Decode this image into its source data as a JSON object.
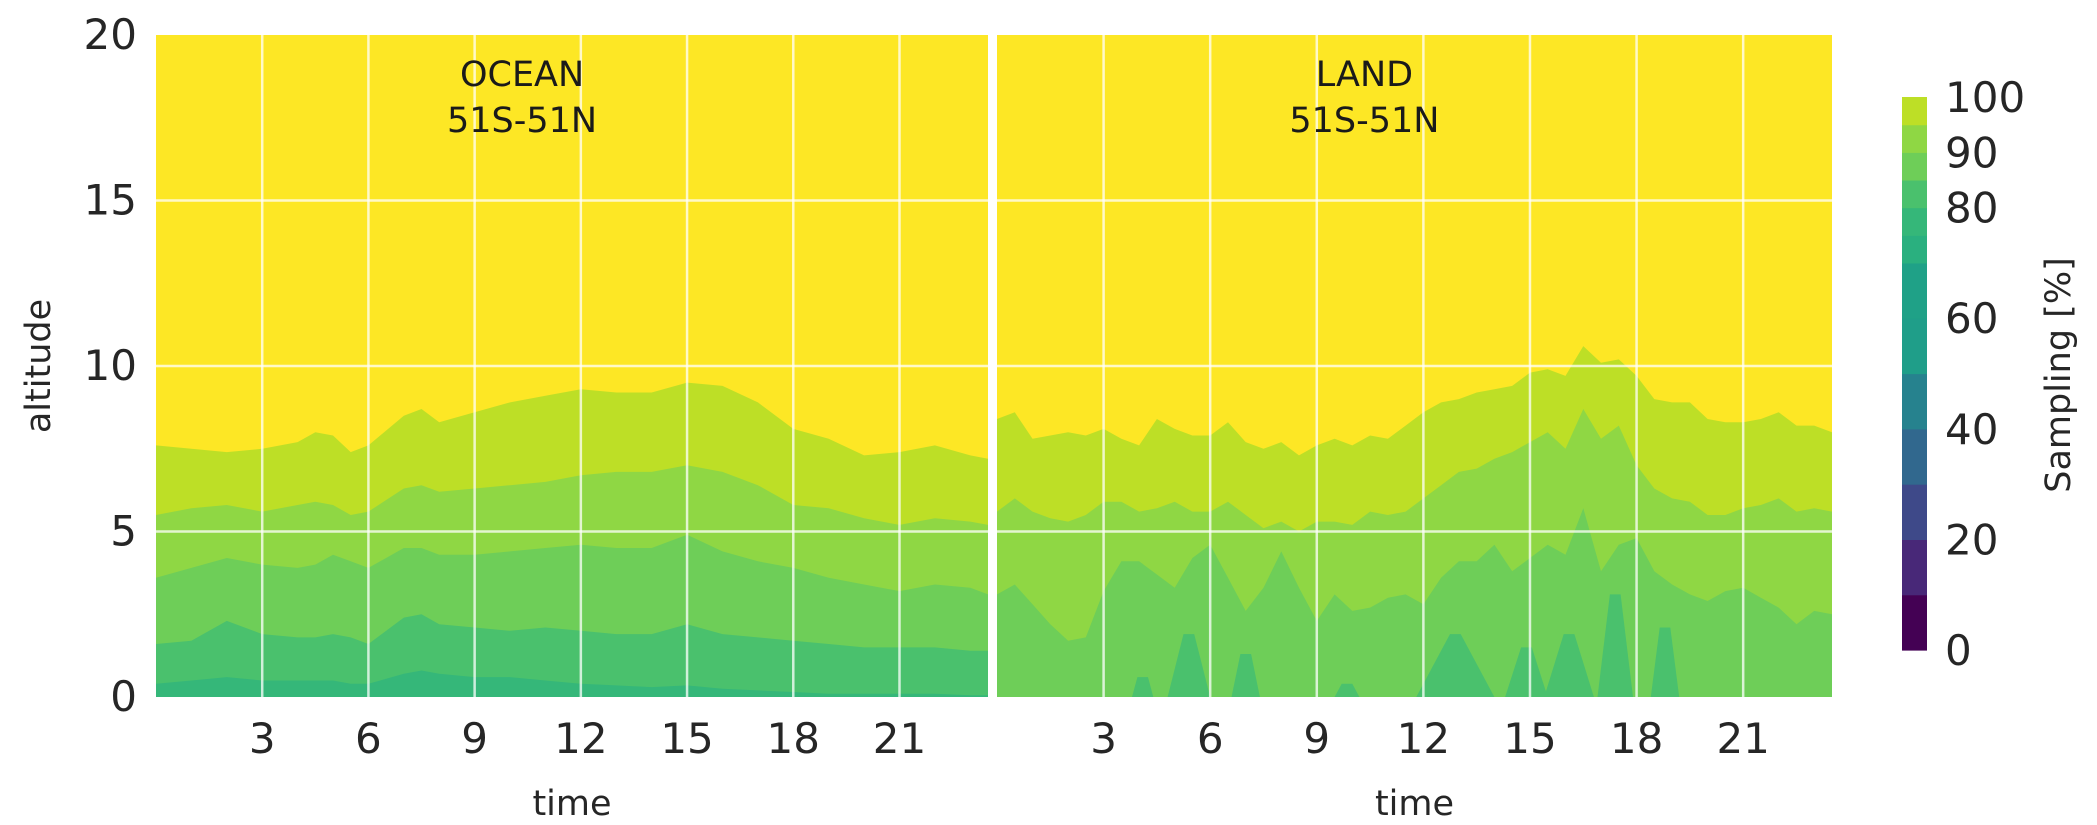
{
  "chart_data": {
    "type": "heatmap",
    "subtype": "filled-contour",
    "shared_ylabel": "altitude",
    "colormap": "viridis",
    "contour_levels": [
      0,
      10,
      20,
      30,
      40,
      50,
      60,
      70,
      75,
      80,
      85,
      90,
      95,
      100
    ],
    "level_colors": [
      "#440154",
      "#482878",
      "#3e4989",
      "#31688e",
      "#26828e",
      "#1f9e89",
      "#1fa187",
      "#2ab07f",
      "#35b779",
      "#4ac16d",
      "#6ece58",
      "#8fd744",
      "#bddf26",
      "#fde725"
    ],
    "colorbar": {
      "label": "Sampling [%]",
      "ticks": [
        0,
        20,
        40,
        60,
        80,
        90,
        100
      ],
      "vmin": 0,
      "vmax": 100
    },
    "grid": true,
    "panels": [
      {
        "title_line1": "OCEAN",
        "title_line2": "51S-51N",
        "xlabel": "time",
        "xlim": [
          0,
          23.5
        ],
        "xticks": [
          3,
          6,
          9,
          12,
          15,
          18,
          21
        ],
        "ylim": [
          0,
          20
        ],
        "yticks": [
          0,
          5,
          10,
          15,
          20
        ],
        "contour_x": [
          0,
          1,
          2,
          3,
          4,
          4.5,
          5,
          5.5,
          6,
          7,
          7.5,
          8,
          9,
          10,
          11,
          12,
          13,
          14,
          15,
          16,
          17,
          18,
          19,
          20,
          21,
          22,
          23,
          23.5
        ],
        "contours": [
          {
            "level": 95,
            "altitude": [
              7.6,
              7.5,
              7.4,
              7.5,
              7.7,
              8.0,
              7.9,
              7.4,
              7.6,
              8.5,
              8.7,
              8.3,
              8.6,
              8.9,
              9.1,
              9.3,
              9.2,
              9.2,
              9.5,
              9.4,
              8.9,
              8.1,
              7.8,
              7.3,
              7.4,
              7.6,
              7.3,
              7.2
            ]
          },
          {
            "level": 90,
            "altitude": [
              5.5,
              5.7,
              5.8,
              5.6,
              5.8,
              5.9,
              5.8,
              5.5,
              5.6,
              6.3,
              6.4,
              6.2,
              6.3,
              6.4,
              6.5,
              6.7,
              6.8,
              6.8,
              7.0,
              6.8,
              6.4,
              5.8,
              5.7,
              5.4,
              5.2,
              5.4,
              5.3,
              5.2
            ]
          },
          {
            "level": 85,
            "altitude": [
              3.6,
              3.9,
              4.2,
              4.0,
              3.9,
              4.0,
              4.3,
              4.1,
              3.9,
              4.5,
              4.5,
              4.3,
              4.3,
              4.4,
              4.5,
              4.6,
              4.5,
              4.5,
              4.9,
              4.4,
              4.1,
              3.9,
              3.6,
              3.4,
              3.2,
              3.4,
              3.3,
              3.1
            ]
          },
          {
            "level": 80,
            "altitude": [
              1.6,
              1.7,
              2.3,
              1.9,
              1.8,
              1.8,
              1.9,
              1.8,
              1.6,
              2.4,
              2.5,
              2.2,
              2.1,
              2.0,
              2.1,
              2.0,
              1.9,
              1.9,
              2.2,
              1.9,
              1.8,
              1.7,
              1.6,
              1.5,
              1.5,
              1.5,
              1.4,
              1.4
            ]
          },
          {
            "level": 75,
            "altitude": [
              0.4,
              0.5,
              0.6,
              0.5,
              0.5,
              0.5,
              0.5,
              0.4,
              0.4,
              0.7,
              0.8,
              0.7,
              0.6,
              0.6,
              0.5,
              0.4,
              0.35,
              0.3,
              0.35,
              0.25,
              0.2,
              0.15,
              0.1,
              0.1,
              0.1,
              0.1,
              0.05,
              0.05
            ]
          }
        ]
      },
      {
        "title_line1": "LAND",
        "title_line2": "51S-51N",
        "xlabel": "time",
        "xlim": [
          0,
          23.5
        ],
        "xticks": [
          3,
          6,
          9,
          12,
          15,
          18,
          21
        ],
        "ylim": [
          0,
          20
        ],
        "yticks": [
          0,
          5,
          10,
          15,
          20
        ],
        "contour_x": [
          0,
          0.5,
          1,
          1.5,
          2,
          2.5,
          3,
          3.5,
          4,
          4.5,
          5,
          5.5,
          6,
          6.5,
          7,
          7.5,
          8,
          8.5,
          9,
          9.5,
          10,
          10.5,
          11,
          11.5,
          12,
          12.5,
          13,
          13.5,
          14,
          14.5,
          15,
          15.5,
          16,
          16.5,
          17,
          17.5,
          18,
          18.5,
          19,
          19.5,
          20,
          20.5,
          21,
          21.5,
          22,
          22.5,
          23,
          23.5
        ],
        "contours": [
          {
            "level": 95,
            "altitude": [
              8.4,
              8.6,
              7.8,
              7.9,
              8.0,
              7.9,
              8.1,
              7.8,
              7.6,
              8.4,
              8.1,
              7.9,
              7.9,
              8.3,
              7.7,
              7.5,
              7.7,
              7.3,
              7.6,
              7.8,
              7.6,
              7.9,
              7.8,
              8.2,
              8.6,
              8.9,
              9.0,
              9.2,
              9.3,
              9.4,
              9.8,
              9.9,
              9.7,
              10.6,
              10.1,
              10.2,
              9.7,
              9.0,
              8.9,
              8.9,
              8.4,
              8.3,
              8.3,
              8.4,
              8.6,
              8.2,
              8.2,
              8.0
            ]
          },
          {
            "level": 90,
            "altitude": [
              5.6,
              6.0,
              5.6,
              5.4,
              5.3,
              5.5,
              5.9,
              5.9,
              5.6,
              5.7,
              5.9,
              5.6,
              5.6,
              5.9,
              5.5,
              5.1,
              5.3,
              5.0,
              5.3,
              5.3,
              5.2,
              5.6,
              5.5,
              5.6,
              6.0,
              6.4,
              6.8,
              6.9,
              7.2,
              7.4,
              7.7,
              8.0,
              7.5,
              8.7,
              7.8,
              8.2,
              7.0,
              6.3,
              6.0,
              5.9,
              5.5,
              5.5,
              5.7,
              5.8,
              6.0,
              5.6,
              5.7,
              5.6
            ]
          },
          {
            "level": 85,
            "altitude": [
              3.1,
              3.4,
              2.8,
              2.2,
              1.7,
              1.8,
              3.2,
              4.1,
              4.1,
              3.7,
              3.3,
              4.2,
              4.6,
              3.6,
              2.6,
              3.3,
              4.4,
              3.3,
              2.3,
              3.1,
              2.6,
              2.7,
              3.0,
              3.1,
              2.8,
              3.6,
              4.1,
              4.1,
              4.6,
              3.8,
              4.2,
              4.6,
              4.3,
              5.7,
              3.8,
              4.6,
              4.8,
              3.8,
              3.4,
              3.1,
              2.9,
              3.2,
              3.3,
              3.0,
              2.7,
              2.2,
              2.6,
              2.5
            ]
          }
        ],
        "spikes_level_80": [
          {
            "x": [
              3.8,
              4.4
            ],
            "peak": 0.6
          },
          {
            "x": [
              4.8,
              6.0
            ],
            "peak": 1.9
          },
          {
            "x": [
              6.6,
              7.4
            ],
            "peak": 1.3
          },
          {
            "x": [
              9.5,
              10.2
            ],
            "peak": 0.4
          },
          {
            "x": [
              11.8,
              14.0
            ],
            "peak": 1.9
          },
          {
            "x": [
              14.3,
              15.5
            ],
            "peak": 1.5
          },
          {
            "x": [
              15.4,
              16.8
            ],
            "peak": 1.9
          },
          {
            "x": [
              16.9,
              17.9
            ],
            "peak": 3.1
          },
          {
            "x": [
              18.4,
              19.2
            ],
            "peak": 2.1
          }
        ]
      }
    ]
  }
}
